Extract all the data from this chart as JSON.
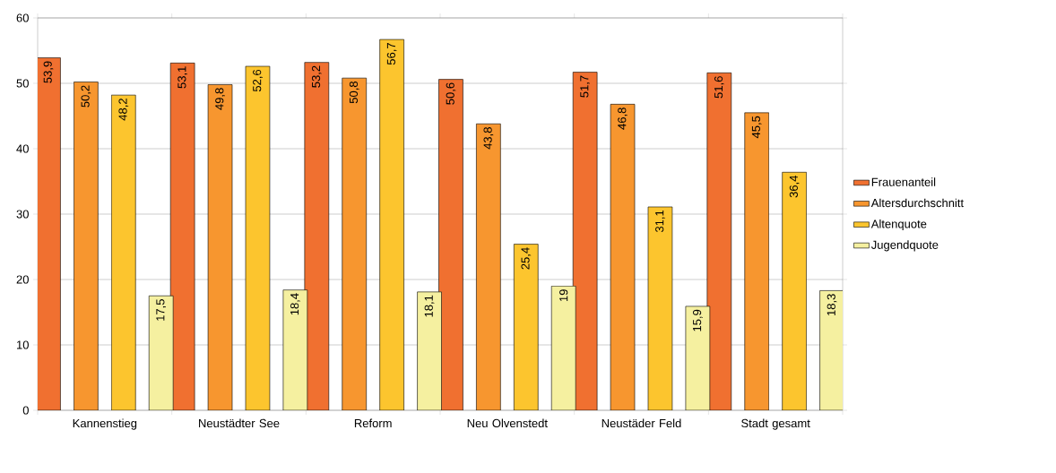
{
  "chart_data": {
    "type": "bar",
    "categories": [
      "Kannenstieg",
      "Neustädter See",
      "Reform",
      "Neu Olvenstedt",
      "Neustäder Feld",
      "Stadt gesamt"
    ],
    "series": [
      {
        "name": "Frauenanteil",
        "color": "#f07030",
        "values": [
          53.9,
          53.1,
          53.2,
          50.6,
          51.7,
          51.6
        ],
        "value_labels": [
          "53,9",
          "53,1",
          "53,2",
          "50,6",
          "51,7",
          "51,6"
        ]
      },
      {
        "name": "Altersdurchschnitt",
        "color": "#f7962f",
        "values": [
          50.2,
          49.8,
          50.8,
          43.8,
          46.8,
          45.5
        ],
        "value_labels": [
          "50,2",
          "49,8",
          "50,8",
          "43,8",
          "46,8",
          "45,5"
        ]
      },
      {
        "name": "Altenquote",
        "color": "#fcc52e",
        "values": [
          48.2,
          52.6,
          56.7,
          25.4,
          31.1,
          36.4
        ],
        "value_labels": [
          "48,2",
          "52,6",
          "56,7",
          "25,4",
          "31,1",
          "36,4"
        ]
      },
      {
        "name": "Jugendquote",
        "color": "#f5f0a0",
        "values": [
          17.5,
          18.4,
          18.1,
          19,
          15.9,
          18.3
        ],
        "value_labels": [
          "17,5",
          "18,4",
          "18,1",
          "19",
          "15,9",
          "18,3"
        ]
      }
    ],
    "ylim": [
      0,
      60
    ],
    "yticks": [
      0,
      10,
      20,
      30,
      40,
      50,
      60
    ],
    "grid": "y",
    "legend": "right"
  }
}
